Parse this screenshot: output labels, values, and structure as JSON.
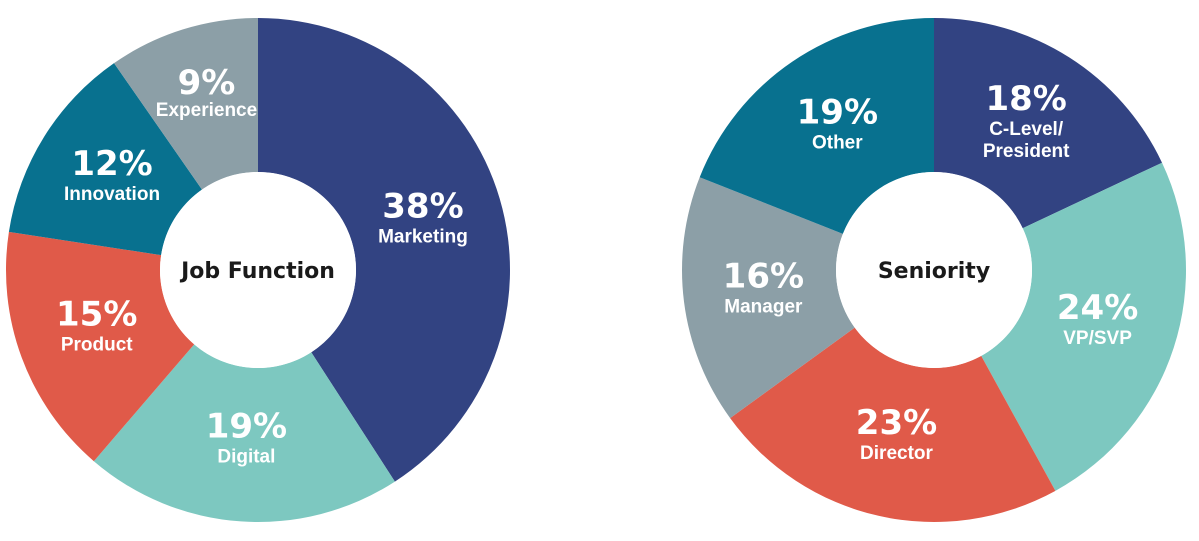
{
  "chart_data": [
    {
      "type": "pie",
      "title": "Job Function",
      "unit": "%",
      "categories": [
        "Marketing",
        "Digital",
        "Product",
        "Innovation",
        "Experience"
      ],
      "values": [
        38,
        19,
        15,
        12,
        9
      ],
      "colors": [
        "#324382",
        "#7dc8c0",
        "#e05a49",
        "#08718f",
        "#8c9fa7"
      ]
    },
    {
      "type": "pie",
      "title": "Seniority",
      "unit": "%",
      "categories": [
        "C-Level/ President",
        "VP/SVP",
        "Director",
        "Manager",
        "Other"
      ],
      "values": [
        18,
        24,
        23,
        16,
        19
      ],
      "colors": [
        "#324382",
        "#7dc8c0",
        "#e05a49",
        "#8c9fa7",
        "#08718f"
      ]
    }
  ]
}
